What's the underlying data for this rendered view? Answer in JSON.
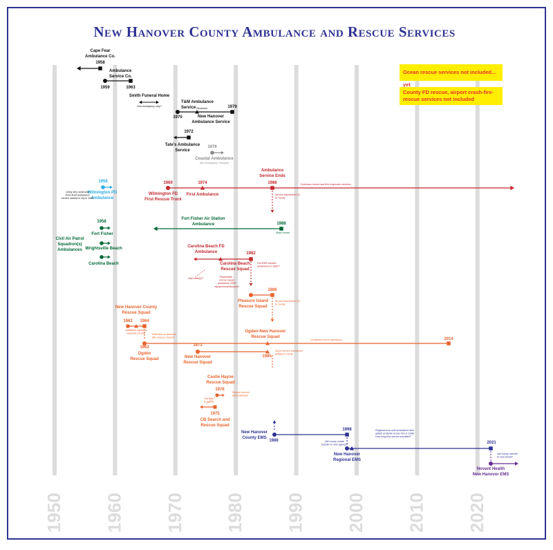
{
  "title": "New Hanover County Ambulance and Rescue Services",
  "notes": [
    "Ocean rescue services not included... yet",
    "County FD rescue, airport crash-fire-rescue services not included"
  ],
  "decades": [
    "1950",
    "1960",
    "1970",
    "1980",
    "1990",
    "2000",
    "2010",
    "2020"
  ],
  "colors": {
    "frame": "#2e3192",
    "title": "#2e3192",
    "decade_line": "#dcdcdc",
    "black": "#111111",
    "gray": "#888888",
    "wilm_blue": "#29abe2",
    "red": "#c1272d",
    "green": "#006837",
    "orange": "#e8622a",
    "navy": "#2e3192",
    "purple": "#662d91",
    "note_bg": "#ffee00",
    "note_text": "#e8312a"
  },
  "labels": {
    "capefear": [
      "Cape Fear",
      "Ambulance Co."
    ],
    "y1958a": "1958",
    "ambservco": [
      "Ambulance",
      "Service Co."
    ],
    "y1959": "1959",
    "y1963": "1963",
    "smith": "Smith Funeral Home",
    "smith_note": "Non-emergency only?",
    "tm": [
      "T&M Ambulance",
      "Service"
    ],
    "renamed": "Renamed",
    "y1979": "1979",
    "y1970": "1970",
    "nhas": [
      "New Hanover",
      "Ambulance Service"
    ],
    "y1972": "1972",
    "tate": [
      "Tate's Ambulance",
      "Service"
    ],
    "y1976a": "1976",
    "coastal": "Coastal Ambulance",
    "coastal_note": "Non-Emergency Transport",
    "wilmpd_y": "1958",
    "wilmpd": [
      "Wilmington PD",
      "Ambulance"
    ],
    "wilmpd_note": [
      "Likely very small and",
      "short-lived ambulance",
      "service started in city in 1958"
    ],
    "y1969": "1969",
    "wfd": [
      "Wilmington FD",
      "First Rescue Truck"
    ],
    "y1974": "1974",
    "first_amb": "First Ambulance",
    "amb_ends": [
      "Ambulance",
      "Service Ends"
    ],
    "y1986a": "1986",
    "wfd_cont": "Continues rescue and first responder services",
    "wfd_note": [
      "Service transferred (?)",
      "to county"
    ],
    "y1958b": "1958",
    "fort_fisher": "Fort Fisher",
    "cap": [
      "Civil Air Patrol",
      "Squadron(s)",
      "Ambulances"
    ],
    "wrightsville": "Wrightsville Beach",
    "carolina_beach": "Carolina Beach",
    "ffas": [
      "Fort Fisher Air Station",
      "Ambulance"
    ],
    "y1988": "1988",
    "base_closed": "Base closed",
    "cbfd": [
      "Carolina Beach FD",
      "Ambulance"
    ],
    "y1982": "1982",
    "cbrs": [
      "Carolina Beach",
      "Rescue Squad"
    ],
    "cbrs_note": [
      "Got EMS transfer",
      "ambulance in 1982?"
    ],
    "start_note": "Start date(s)?",
    "cb_placeholder": [
      "Placeholder -",
      "rescue squad",
      "operations, EMS",
      "equipment/ambulance"
    ],
    "y1986b": "1986",
    "pirs": [
      "Pleasure Island",
      "Rescue Squad"
    ],
    "pirs_note": [
      "Service transferred (?)",
      "to county"
    ],
    "nhcrs": [
      "New Hanover County",
      "Rescue Squad"
    ],
    "y1962a": "1962",
    "y1964": "1964",
    "nhcrs_note": [
      "Additional squad as",
      "separate (?) (28)"
    ],
    "y1962b": "1962",
    "ogden": [
      "Ogden",
      "Rescue Squad"
    ],
    "ogden_note": [
      "Relocates to beaches",
      "(fire rescue / hose?)"
    ],
    "onh": [
      "Ogden-New Hanover",
      "Rescue Squad"
    ],
    "y2014": "2014",
    "onh_cont": "Continues rescue operations",
    "y1973": "1973",
    "nhrs": [
      "New Hanover",
      "Rescue Squad"
    ],
    "y1985": "1985",
    "onh_merge": [
      "Some service transferred",
      "(EMS) to county"
    ],
    "castle": [
      "Castle Hayne",
      "Rescue Squad"
    ],
    "y1976b": "1976",
    "castle_note": [
      "Rescue service",
      "(discontinued)"
    ],
    "cbsr_note": [
      "Transfer",
      "to county"
    ],
    "y1975": "1975",
    "cbsr": [
      "CB Search and",
      "Rescue Squad"
    ],
    "nhcems": [
      "New Hanover",
      "County EMS"
    ],
    "y1986c": "1986",
    "y1998": "1998",
    "county_note": [
      "Did county create",
      "transfer to new agency?"
    ],
    "regional_note": [
      "Regional trust with ambulance fleet",
      "added at Myrtle Grove Fire in 1998;",
      "How long was service provided?"
    ],
    "nhrems": [
      "New Hanover",
      "Regional EMS"
    ],
    "y2021": "2021",
    "novant_note": [
      "Did county transfer",
      "to new brand?"
    ],
    "novant": [
      "Novant Health",
      "New Hanover EMS"
    ]
  }
}
